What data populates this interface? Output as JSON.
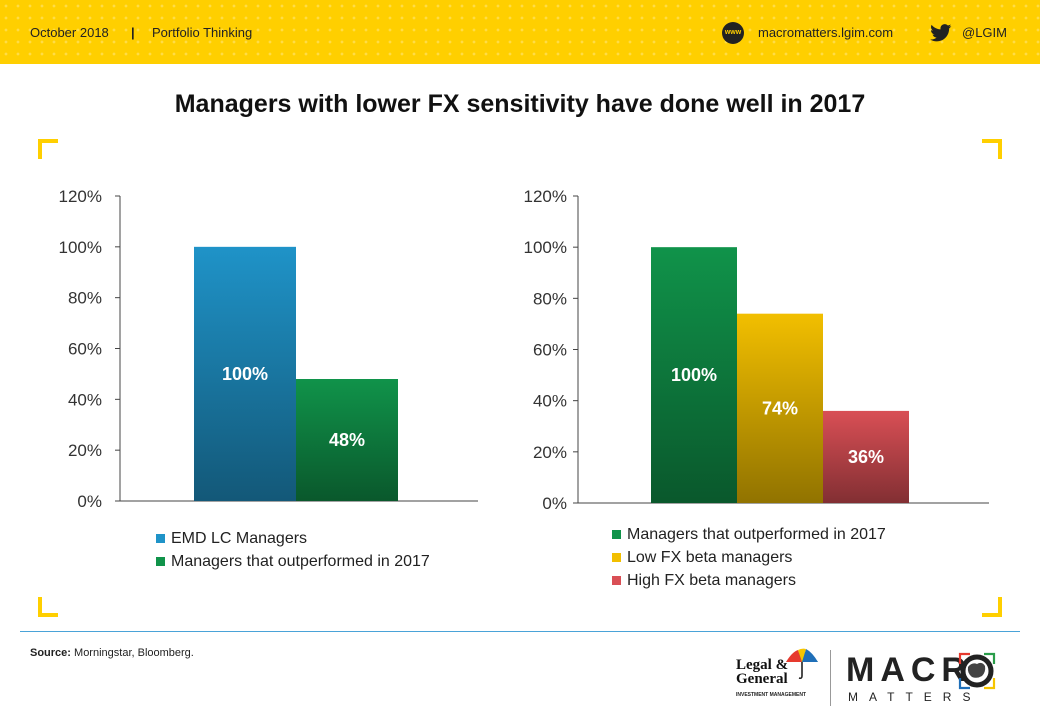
{
  "header": {
    "date": "October 2018",
    "separator": "|",
    "section": "Portfolio Thinking",
    "www_icon_label": "www",
    "url": "macromatters.lgim.com",
    "twitter_handle": "@LGIM",
    "icons": [
      "www-icon",
      "twitter-icon"
    ],
    "colors": {
      "brand_yellow": "#ffcf00"
    }
  },
  "title": "Managers with lower FX sensitivity have done well in 2017",
  "chart_data": [
    {
      "type": "bar",
      "categories": [
        "EMD LC Managers",
        "Managers that outperformed in 2017"
      ],
      "values": [
        100,
        48
      ],
      "data_labels": [
        "100%",
        "48%"
      ],
      "colors": [
        "#1f93c8",
        "#10934a"
      ],
      "ylim": [
        0,
        120
      ],
      "yticks": [
        "0%",
        "20%",
        "40%",
        "60%",
        "80%",
        "100%",
        "120%"
      ],
      "grid": false,
      "legend": "bottom",
      "title": "",
      "xlabel": "",
      "ylabel": ""
    },
    {
      "type": "bar",
      "categories": [
        "Managers that outperformed in 2017",
        "Low FX beta managers",
        "High FX beta managers"
      ],
      "values": [
        100,
        74,
        36
      ],
      "data_labels": [
        "100%",
        "74%",
        "36%"
      ],
      "colors": [
        "#10934a",
        "#f2bf00",
        "#d94f55"
      ],
      "ylim": [
        0,
        120
      ],
      "yticks": [
        "0%",
        "20%",
        "40%",
        "60%",
        "80%",
        "100%",
        "120%"
      ],
      "grid": false,
      "legend": "bottom",
      "title": "",
      "xlabel": "",
      "ylabel": ""
    }
  ],
  "footer": {
    "source_label": "Source:",
    "source_text": " Morningstar, Bloomberg.",
    "lg_name_line1": "Legal &",
    "lg_name_line2": "General",
    "lg_subtitle": "INVESTMENT MANAGEMENT",
    "macro_letters": "MACR",
    "matters": "MATTERS",
    "icons": [
      "umbrella-logo-icon",
      "macro-o-icon"
    ]
  }
}
